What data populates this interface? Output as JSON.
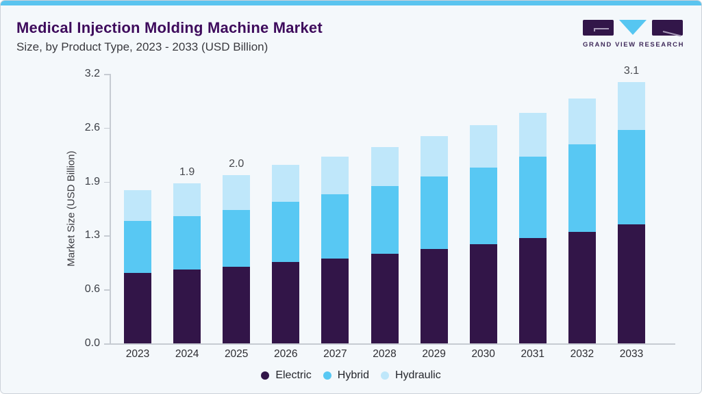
{
  "header": {
    "title": "Medical Injection Molding Machine Market",
    "subtitle": "Size, by Product Type, 2023 - 2033 (USD Billion)"
  },
  "brand": {
    "name": "GRAND VIEW RESEARCH"
  },
  "colors": {
    "accent_strip": "#5ac4ef",
    "card_background": "#f4f8fb",
    "title_text": "#3e0b5c",
    "axis_line": "#c6cbd2",
    "electric": "#321548",
    "hybrid": "#58c8f3",
    "hydraulic": "#bfe7fa"
  },
  "chart_data": {
    "type": "bar",
    "stacked": true,
    "title": "Medical Injection Molding Machine Market Size, by Product Type, 2023 - 2033 (USD Billion)",
    "xlabel": "",
    "ylabel": "Market Size (USD Billion)",
    "ylim": [
      0,
      3.2
    ],
    "grid": false,
    "legend_position": "bottom",
    "categories": [
      "2023",
      "2024",
      "2025",
      "2026",
      "2027",
      "2028",
      "2029",
      "2030",
      "2031",
      "2032",
      "2033"
    ],
    "yticks": [
      {
        "value": 0.0,
        "label": "0.0"
      },
      {
        "value": 0.64,
        "label": "0.6"
      },
      {
        "value": 1.28,
        "label": "1.3"
      },
      {
        "value": 1.92,
        "label": "1.9"
      },
      {
        "value": 2.56,
        "label": "2.6"
      },
      {
        "value": 3.2,
        "label": "3.2"
      }
    ],
    "series": [
      {
        "name": "Electric",
        "color": "#321548",
        "values": [
          0.84,
          0.88,
          0.91,
          0.97,
          1.01,
          1.06,
          1.12,
          1.18,
          1.25,
          1.32,
          1.41
        ]
      },
      {
        "name": "Hybrid",
        "color": "#58c8f3",
        "values": [
          0.61,
          0.63,
          0.67,
          0.71,
          0.76,
          0.81,
          0.86,
          0.91,
          0.97,
          1.04,
          1.12
        ]
      },
      {
        "name": "Hydraulic",
        "color": "#bfe7fa",
        "values": [
          0.37,
          0.39,
          0.42,
          0.44,
          0.45,
          0.46,
          0.48,
          0.5,
          0.52,
          0.55,
          0.57
        ]
      }
    ],
    "bar_total_labels": {
      "2024": "1.9",
      "2025": "2.0",
      "2033": "3.1"
    }
  }
}
